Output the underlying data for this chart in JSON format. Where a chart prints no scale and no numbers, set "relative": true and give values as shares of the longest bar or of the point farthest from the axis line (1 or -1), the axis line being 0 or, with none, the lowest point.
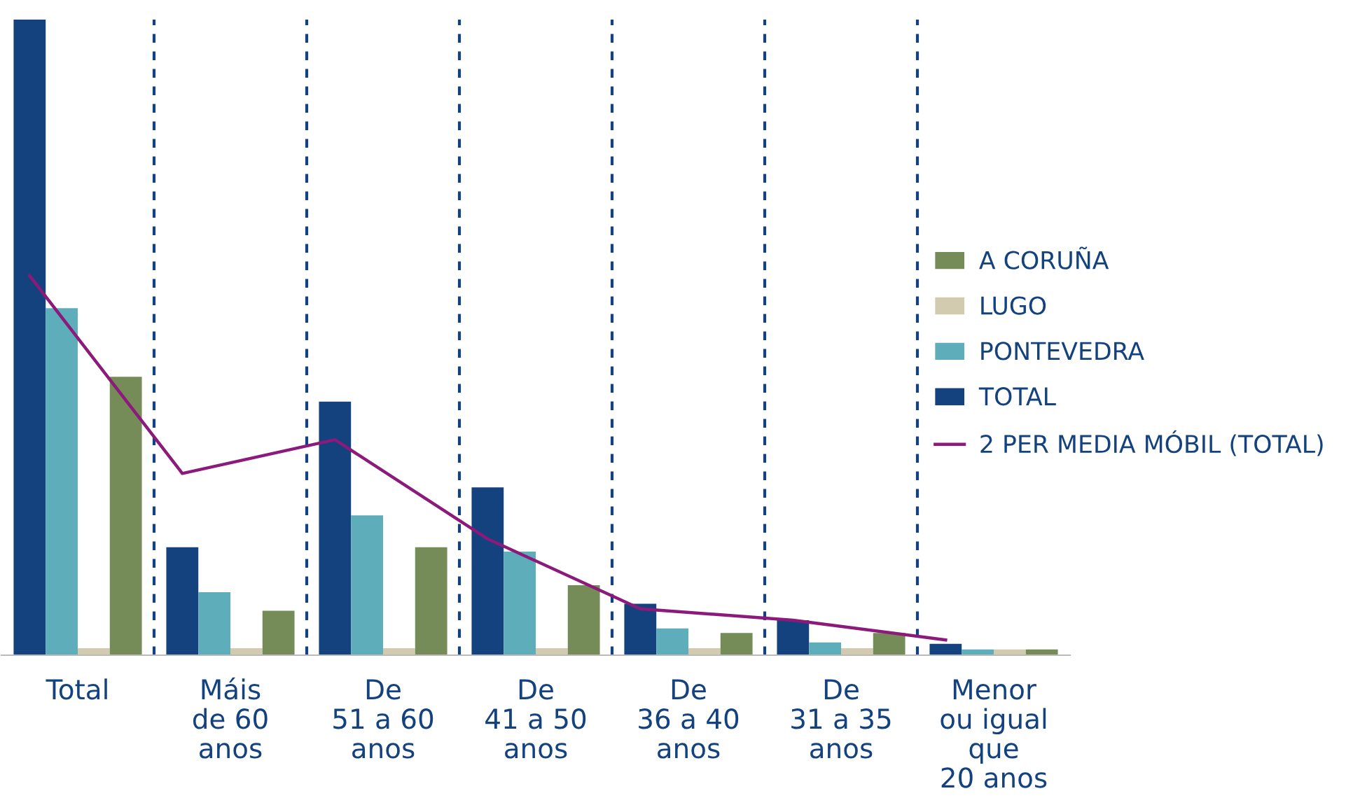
{
  "chart_data": {
    "type": "bar",
    "relative": true,
    "categories": [
      "Total",
      "Máis\nde 60\nanos",
      "De\n51 a 60\nanos",
      "De\n41 a 50\nanos",
      "De\n36 a 40\nanos",
      "De\n31 a 35\nanos",
      "Menor\nou igual\nque\n20 anos"
    ],
    "series": [
      {
        "name": "TOTAL",
        "color": "#14427f",
        "values": [
          1,
          0.17,
          0.399,
          0.264,
          0.081,
          0.055,
          0.018
        ]
      },
      {
        "name": "PONTEVEDRA",
        "color": "#5eadbb",
        "values": [
          0.546,
          0.099,
          0.22,
          0.163,
          0.042,
          0.02,
          0.009
        ]
      },
      {
        "name": "LUGO",
        "color": "#d3cbb0",
        "values": [
          0.011,
          0.011,
          0.011,
          0.011,
          0.011,
          0.011,
          0.009
        ]
      },
      {
        "name": "A CORUÑA",
        "color": "#758c59",
        "values": [
          0.438,
          0.07,
          0.17,
          0.11,
          0.035,
          0.035,
          0.009
        ]
      },
      {
        "name": "2 PER MEDIA MÓBIL (TOTAL)",
        "color": "#8b1a7a",
        "type": "line",
        "values": [
          0.597,
          0.286,
          0.339,
          0.183,
          0.073,
          0.055,
          0.024
        ]
      }
    ],
    "grid": "x",
    "legend": "right",
    "marker": "none",
    "line_style": "solid"
  }
}
